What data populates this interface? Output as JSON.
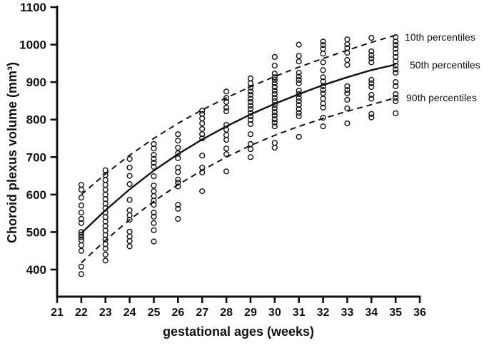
{
  "figure": {
    "ylabel": "Choroid plexus volume (mm³)",
    "xlabel": "gestational ages (weeks)",
    "legend": [
      "10th percentiles",
      "50th percentiles",
      "90th percentiles"
    ]
  },
  "chart_data": {
    "type": "scatter",
    "title": "",
    "xlabel": "gestational ages (weeks)",
    "ylabel": "Choroid plexus volume (mm³)",
    "xlim": [
      21,
      36
    ],
    "ylim": [
      400,
      1100
    ],
    "grid": false,
    "x_ticks": [
      21,
      22,
      23,
      24,
      25,
      26,
      27,
      28,
      29,
      30,
      31,
      32,
      33,
      34,
      35,
      36
    ],
    "y_ticks": [
      400,
      500,
      600,
      700,
      800,
      900,
      1000,
      1100
    ],
    "marker": "open-circle",
    "ink_color": "#111111",
    "scatter": {
      "22": [
        626,
        613,
        592,
        571,
        552,
        535,
        524,
        500,
        493,
        486,
        478,
        465,
        450,
        408,
        388
      ],
      "23": [
        665,
        652,
        639,
        626,
        613,
        600,
        588,
        576,
        564,
        552,
        540,
        528,
        516,
        504,
        492,
        480,
        468,
        456,
        440,
        424
      ],
      "24": [
        695,
        672,
        650,
        628,
        586,
        558,
        545,
        533,
        501,
        488,
        476,
        462
      ],
      "25": [
        735,
        723,
        706,
        695,
        685,
        674,
        649,
        624,
        609,
        596,
        584,
        573,
        552,
        541,
        524,
        505,
        475
      ],
      "26": [
        761,
        744,
        725,
        710,
        697,
        672,
        660,
        640,
        632,
        622,
        573,
        562,
        535
      ],
      "27": [
        824,
        815,
        803,
        790,
        775,
        761,
        750,
        704,
        672,
        659,
        609
      ],
      "28": [
        875,
        858,
        847,
        832,
        822,
        786,
        773,
        759,
        746,
        723,
        708,
        662
      ],
      "29": [
        910,
        897,
        885,
        875,
        866,
        856,
        847,
        837,
        828,
        818,
        809,
        799,
        788,
        761,
        735,
        721,
        700
      ],
      "30": [
        967,
        944,
        923,
        913,
        906,
        897,
        887,
        877,
        868,
        858,
        849,
        839,
        830,
        820,
        811,
        801,
        792,
        782,
        738,
        725
      ],
      "31": [
        1000,
        970,
        955,
        925,
        915,
        906,
        897,
        877,
        868,
        858,
        849,
        839,
        828,
        818,
        809,
        754
      ],
      "32": [
        1008,
        999,
        989,
        976,
        953,
        932,
        913,
        902,
        889,
        879,
        870,
        856,
        843,
        832,
        805,
        782
      ],
      "33": [
        1014,
        1001,
        991,
        978,
        959,
        946,
        889,
        879,
        870,
        853,
        830,
        790
      ],
      "34": [
        1018,
        982,
        972,
        963,
        953,
        906,
        897,
        887,
        866,
        856,
        815,
        806
      ],
      "35": [
        1020,
        1008,
        999,
        989,
        978,
        967,
        955,
        944,
        934,
        925,
        900,
        889,
        868,
        858,
        849,
        817
      ]
    },
    "curves": [
      {
        "name": "10th percentiles",
        "style": "dashed",
        "weeks": [
          22,
          23,
          24,
          25,
          26,
          27,
          28,
          29,
          30,
          31,
          32,
          33,
          34,
          35
        ],
        "values": [
          600,
          655,
          705,
          750,
          790,
          826,
          858,
          888,
          915,
          940,
          963,
          985,
          1006,
          1025
        ]
      },
      {
        "name": "50th percentiles",
        "style": "solid",
        "weeks": [
          22,
          23,
          24,
          25,
          26,
          27,
          28,
          29,
          30,
          31,
          32,
          33,
          34,
          35
        ],
        "values": [
          497,
          558,
          614,
          664,
          708,
          747,
          782,
          814,
          842,
          868,
          892,
          913,
          932,
          947
        ]
      },
      {
        "name": "90th percentiles",
        "style": "dashed",
        "weeks": [
          22,
          23,
          24,
          25,
          26,
          27,
          28,
          29,
          30,
          31,
          32,
          33,
          34,
          35
        ],
        "values": [
          418,
          478,
          533,
          582,
          626,
          665,
          700,
          731,
          758,
          782,
          803,
          822,
          840,
          858
        ]
      }
    ],
    "legend_position": "right-outside"
  }
}
